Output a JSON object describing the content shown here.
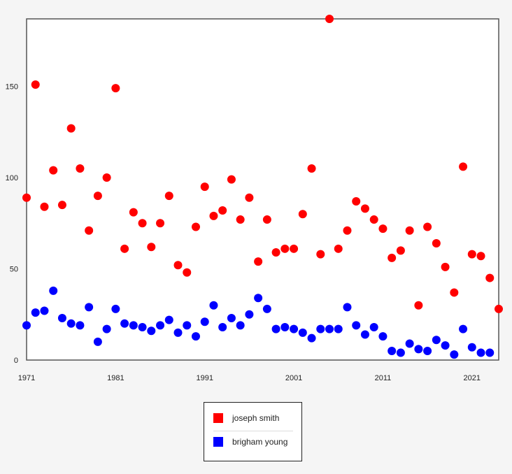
{
  "chart_data": {
    "type": "scatter",
    "title": "",
    "xlabel": "",
    "ylabel": "",
    "xlim": [
      1971,
      2024
    ],
    "ylim": [
      0,
      187
    ],
    "xticks": [
      1971,
      1981,
      1991,
      2001,
      2011,
      2021
    ],
    "yticks": [
      0,
      50,
      100,
      150
    ],
    "grid": false,
    "legend_position": "bottom",
    "series": [
      {
        "name": "joseph smith",
        "color": "#ff0000",
        "x": [
          1971,
          1972,
          1973,
          1974,
          1975,
          1976,
          1977,
          1978,
          1979,
          1980,
          1981,
          1982,
          1983,
          1984,
          1985,
          1986,
          1987,
          1988,
          1989,
          1990,
          1991,
          1992,
          1993,
          1994,
          1995,
          1996,
          1997,
          1998,
          1999,
          2000,
          2001,
          2002,
          2003,
          2004,
          2005,
          2006,
          2007,
          2008,
          2009,
          2010,
          2011,
          2012,
          2013,
          2014,
          2015,
          2016,
          2017,
          2018,
          2019,
          2020,
          2021,
          2022,
          2023,
          2024
        ],
        "y": [
          89,
          151,
          84,
          104,
          85,
          127,
          105,
          71,
          90,
          100,
          149,
          61,
          81,
          75,
          62,
          75,
          90,
          52,
          48,
          73,
          95,
          79,
          82,
          99,
          77,
          89,
          54,
          77,
          59,
          61,
          61,
          80,
          105,
          58,
          187,
          61,
          71,
          87,
          83,
          77,
          72,
          56,
          60,
          71,
          30,
          73,
          64,
          51,
          37,
          106,
          58,
          57,
          45,
          28
        ]
      },
      {
        "name": "brigham young",
        "color": "#0000ff",
        "x": [
          1971,
          1972,
          1973,
          1974,
          1975,
          1976,
          1977,
          1978,
          1979,
          1980,
          1981,
          1982,
          1983,
          1984,
          1985,
          1986,
          1987,
          1988,
          1989,
          1990,
          1991,
          1992,
          1993,
          1994,
          1995,
          1996,
          1997,
          1998,
          1999,
          2000,
          2001,
          2002,
          2003,
          2004,
          2005,
          2006,
          2007,
          2008,
          2009,
          2010,
          2011,
          2012,
          2013,
          2014,
          2015,
          2016,
          2017,
          2018,
          2019,
          2020,
          2021,
          2022,
          2023
        ],
        "y": [
          19,
          26,
          27,
          38,
          23,
          20,
          19,
          29,
          10,
          17,
          28,
          20,
          19,
          18,
          16,
          19,
          22,
          15,
          19,
          13,
          21,
          30,
          18,
          23,
          19,
          25,
          34,
          28,
          17,
          18,
          17,
          15,
          12,
          17,
          17,
          17,
          29,
          19,
          14,
          18,
          13,
          5,
          4,
          9,
          6,
          5,
          11,
          8,
          3,
          17,
          7,
          4,
          4
        ]
      }
    ]
  }
}
